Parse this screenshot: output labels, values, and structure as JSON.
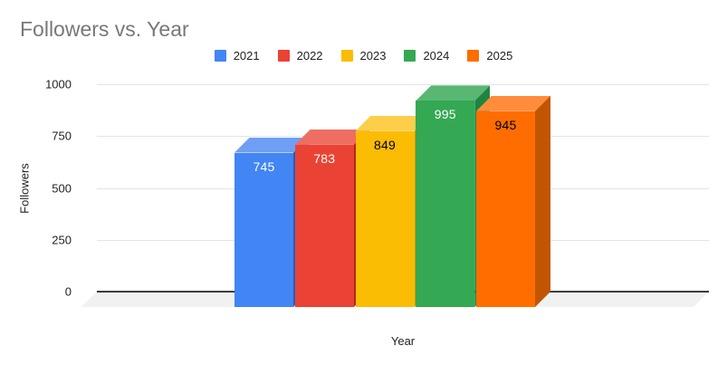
{
  "chart_data": {
    "type": "bar",
    "style": "3d-column",
    "title": "Followers vs. Year",
    "xlabel": "Year",
    "ylabel": "Followers",
    "categories": [
      "2021",
      "2022",
      "2023",
      "2024",
      "2025"
    ],
    "values": [
      745,
      783,
      849,
      995,
      945
    ],
    "ylim": [
      0,
      1000
    ],
    "yticks": [
      0,
      250,
      500,
      750,
      1000
    ],
    "grid": true,
    "legend_position": "top-center",
    "title_color": "#787878",
    "bars": [
      {
        "year": "2021",
        "value": 745,
        "color": "#4285F4",
        "top_color": "#6E9FF5",
        "side_color": "#2E5CB8",
        "label_color": "#FFFFFF"
      },
      {
        "year": "2022",
        "value": 783,
        "color": "#EA4335",
        "top_color": "#EE6E62",
        "side_color": "#B0281C",
        "label_color": "#FFFFFF"
      },
      {
        "year": "2023",
        "value": 849,
        "color": "#FBBC04",
        "top_color": "#FCCE49",
        "side_color": "#D19D03",
        "label_color": "#000000"
      },
      {
        "year": "2024",
        "value": 995,
        "color": "#34A853",
        "top_color": "#58B873",
        "side_color": "#1F8443",
        "label_color": "#FFFFFF"
      },
      {
        "year": "2025",
        "value": 945,
        "color": "#FF6D01",
        "top_color": "#FF8C3B",
        "side_color": "#C25502",
        "label_color": "#000000"
      }
    ]
  }
}
